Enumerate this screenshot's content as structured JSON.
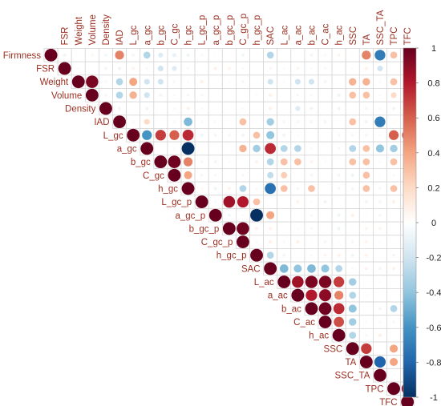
{
  "chart_data": {
    "type": "heatmap",
    "subtype": "correlation-matrix-upper",
    "variables": [
      "Firmness",
      "FSR",
      "Weight",
      "Volume",
      "Density",
      "IAD",
      "L_gc",
      "a_gc",
      "b_gc",
      "C_gc",
      "h_gc",
      "L_gc_p",
      "a_gc_p",
      "b_gc_p",
      "C_gc_p",
      "h_gc_p",
      "SAC",
      "L_ac",
      "a_ac",
      "b_ac",
      "C_ac",
      "h_ac",
      "SSC",
      "TA",
      "SSC_TA",
      "TPC",
      "TFC"
    ],
    "correlations": [
      {
        "row": "Firmness",
        "col": "IAD",
        "r": 0.5
      },
      {
        "row": "Firmness",
        "col": "a_gc",
        "r": -0.3
      },
      {
        "row": "Firmness",
        "col": "b_gc",
        "r": -0.15
      },
      {
        "row": "Firmness",
        "col": "C_gc",
        "r": -0.1
      },
      {
        "row": "Firmness",
        "col": "SAC",
        "r": -0.3
      },
      {
        "row": "Firmness",
        "col": "TA",
        "r": 0.5
      },
      {
        "row": "Firmness",
        "col": "SSC_TA",
        "r": -0.7
      },
      {
        "row": "Firmness",
        "col": "TPC",
        "r": 0.3
      },
      {
        "row": "Firmness",
        "col": "TFC",
        "r": 0.3
      },
      {
        "row": "FSR",
        "col": "b_gc",
        "r": -0.2
      },
      {
        "row": "FSR",
        "col": "C_gc",
        "r": -0.15
      },
      {
        "row": "FSR",
        "col": "SSC_TA",
        "r": -0.2
      },
      {
        "row": "Weight",
        "col": "Volume",
        "r": 0.95
      },
      {
        "row": "Weight",
        "col": "IAD",
        "r": -0.3
      },
      {
        "row": "Weight",
        "col": "L_gc",
        "r": 0.4
      },
      {
        "row": "Weight",
        "col": "a_gc",
        "r": -0.2
      },
      {
        "row": "Weight",
        "col": "b_gc",
        "r": -0.2
      },
      {
        "row": "Weight",
        "col": "SAC",
        "r": -0.2
      },
      {
        "row": "Weight",
        "col": "a_ac",
        "r": -0.2
      },
      {
        "row": "Weight",
        "col": "b_ac",
        "r": -0.2
      },
      {
        "row": "Weight",
        "col": "SSC",
        "r": 0.35
      },
      {
        "row": "Weight",
        "col": "TA",
        "r": 0.35
      },
      {
        "row": "Weight",
        "col": "TPC",
        "r": 0.3
      },
      {
        "row": "Volume",
        "col": "IAD",
        "r": -0.3
      },
      {
        "row": "Volume",
        "col": "L_gc",
        "r": 0.35
      },
      {
        "row": "Volume",
        "col": "a_gc",
        "r": -0.2
      },
      {
        "row": "Volume",
        "col": "SSC",
        "r": 0.3
      },
      {
        "row": "Volume",
        "col": "TA",
        "r": 0.3
      },
      {
        "row": "Volume",
        "col": "TPC",
        "r": 0.2
      },
      {
        "row": "Density",
        "col": "a_ac",
        "r": -0.15
      },
      {
        "row": "Density",
        "col": "TFC",
        "r": -0.15
      },
      {
        "row": "IAD",
        "col": "a_gc",
        "r": 0.2
      },
      {
        "row": "IAD",
        "col": "h_gc",
        "r": -0.45
      },
      {
        "row": "IAD",
        "col": "C_gc_p",
        "r": 0.3
      },
      {
        "row": "IAD",
        "col": "SAC",
        "r": -0.35
      },
      {
        "row": "IAD",
        "col": "SSC",
        "r": 0.3
      },
      {
        "row": "IAD",
        "col": "SSC_TA",
        "r": -0.7
      },
      {
        "row": "IAD",
        "col": "TFC",
        "r": 0.2
      },
      {
        "row": "L_gc",
        "col": "a_gc",
        "r": -0.6
      },
      {
        "row": "L_gc",
        "col": "b_gc",
        "r": 0.7
      },
      {
        "row": "L_gc",
        "col": "C_gc",
        "r": 0.6
      },
      {
        "row": "L_gc",
        "col": "h_gc",
        "r": 0.75
      },
      {
        "row": "L_gc",
        "col": "h_gc_p",
        "r": 0.3
      },
      {
        "row": "L_gc",
        "col": "SAC",
        "r": -0.4
      },
      {
        "row": "L_gc",
        "col": "TPC",
        "r": 0.6
      },
      {
        "row": "L_gc",
        "col": "TFC",
        "r": 0.7
      },
      {
        "row": "a_gc",
        "col": "h_gc",
        "r": -1.0
      },
      {
        "row": "a_gc",
        "col": "C_gc_p",
        "r": 0.35
      },
      {
        "row": "a_gc",
        "col": "h_gc_p",
        "r": -0.35
      },
      {
        "row": "a_gc",
        "col": "SAC",
        "r": 0.75
      },
      {
        "row": "a_gc",
        "col": "L_ac",
        "r": -0.3
      },
      {
        "row": "a_gc",
        "col": "a_ac",
        "r": -0.3
      },
      {
        "row": "a_gc",
        "col": "SSC",
        "r": -0.3
      },
      {
        "row": "a_gc",
        "col": "TA",
        "r": 0.3
      },
      {
        "row": "a_gc",
        "col": "SSC_TA",
        "r": -0.4
      },
      {
        "row": "a_gc",
        "col": "TPC",
        "r": -0.35
      },
      {
        "row": "a_gc",
        "col": "TFC",
        "r": -0.4
      },
      {
        "row": "b_gc",
        "col": "C_gc",
        "r": 0.98
      },
      {
        "row": "b_gc",
        "col": "h_gc",
        "r": 0.5
      },
      {
        "row": "b_gc",
        "col": "SAC",
        "r": -0.3
      },
      {
        "row": "b_gc",
        "col": "L_ac",
        "r": 0.3
      },
      {
        "row": "b_gc",
        "col": "a_ac",
        "r": 0.3
      },
      {
        "row": "b_gc",
        "col": "SSC",
        "r": 0.3
      },
      {
        "row": "b_gc",
        "col": "TA",
        "r": 0.3
      },
      {
        "row": "b_gc",
        "col": "TPC",
        "r": 0.3
      },
      {
        "row": "C_gc",
        "col": "h_gc",
        "r": 0.4
      },
      {
        "row": "C_gc",
        "col": "SAC",
        "r": -0.25
      },
      {
        "row": "C_gc",
        "col": "L_ac",
        "r": 0.25
      },
      {
        "row": "C_gc",
        "col": "TA",
        "r": 0.3
      },
      {
        "row": "h_gc",
        "col": "C_gc_p",
        "r": -0.3
      },
      {
        "row": "h_gc",
        "col": "SAC",
        "r": -0.75
      },
      {
        "row": "h_gc",
        "col": "L_ac",
        "r": 0.3
      },
      {
        "row": "h_gc",
        "col": "b_ac",
        "r": 0.3
      },
      {
        "row": "h_gc",
        "col": "TA",
        "r": 0.3
      },
      {
        "row": "h_gc",
        "col": "TPC",
        "r": 0.3
      },
      {
        "row": "h_gc",
        "col": "TFC",
        "r": 0.3
      },
      {
        "row": "L_gc_p",
        "col": "b_gc_p",
        "r": 0.85
      },
      {
        "row": "L_gc_p",
        "col": "C_gc_p",
        "r": 0.8
      },
      {
        "row": "L_gc_p",
        "col": "h_gc_p",
        "r": 0.3
      },
      {
        "row": "a_gc_p",
        "col": "h_gc_p",
        "r": -1.0
      },
      {
        "row": "a_gc_p",
        "col": "SAC",
        "r": 0.4
      },
      {
        "row": "b_gc_p",
        "col": "C_gc_p",
        "r": 0.98
      },
      {
        "row": "h_gc_p",
        "col": "SAC",
        "r": -0.3
      },
      {
        "row": "SAC",
        "col": "L_ac",
        "r": -0.45
      },
      {
        "row": "SAC",
        "col": "a_ac",
        "r": -0.4
      },
      {
        "row": "SAC",
        "col": "b_ac",
        "r": -0.45
      },
      {
        "row": "SAC",
        "col": "C_ac",
        "r": -0.4
      },
      {
        "row": "SAC",
        "col": "h_ac",
        "r": -0.3
      },
      {
        "row": "L_ac",
        "col": "a_ac",
        "r": 0.85
      },
      {
        "row": "L_ac",
        "col": "b_ac",
        "r": 0.95
      },
      {
        "row": "L_ac",
        "col": "C_ac",
        "r": 0.95
      },
      {
        "row": "L_ac",
        "col": "h_ac",
        "r": 0.7
      },
      {
        "row": "L_ac",
        "col": "SSC",
        "r": -0.35
      },
      {
        "row": "L_ac",
        "col": "TFC",
        "r": -0.3
      },
      {
        "row": "a_ac",
        "col": "b_ac",
        "r": 0.8
      },
      {
        "row": "a_ac",
        "col": "C_ac",
        "r": 0.9
      },
      {
        "row": "a_ac",
        "col": "h_ac",
        "r": 0.5
      },
      {
        "row": "a_ac",
        "col": "SSC",
        "r": -0.3
      },
      {
        "row": "a_ac",
        "col": "TFC",
        "r": -0.3
      },
      {
        "row": "b_ac",
        "col": "C_ac",
        "r": 0.98
      },
      {
        "row": "b_ac",
        "col": "h_ac",
        "r": 0.75
      },
      {
        "row": "b_ac",
        "col": "SSC",
        "r": -0.4
      },
      {
        "row": "b_ac",
        "col": "TPC",
        "r": -0.3
      },
      {
        "row": "b_ac",
        "col": "TFC",
        "r": -0.35
      },
      {
        "row": "C_ac",
        "col": "h_ac",
        "r": 0.65
      },
      {
        "row": "C_ac",
        "col": "SSC",
        "r": -0.35
      },
      {
        "row": "C_ac",
        "col": "TFC",
        "r": -0.3
      },
      {
        "row": "h_ac",
        "col": "SSC",
        "r": -0.3
      },
      {
        "row": "h_ac",
        "col": "TFC",
        "r": -0.3
      },
      {
        "row": "SSC",
        "col": "TA",
        "r": 0.7
      },
      {
        "row": "SSC",
        "col": "TPC",
        "r": 0.4
      },
      {
        "row": "SSC",
        "col": "TFC",
        "r": 0.5
      },
      {
        "row": "TA",
        "col": "SSC_TA",
        "r": -0.8
      },
      {
        "row": "TA",
        "col": "TPC",
        "r": 0.4
      },
      {
        "row": "TA",
        "col": "TFC",
        "r": 0.4
      },
      {
        "row": "SSC_TA",
        "col": "TFC",
        "r": -0.35
      },
      {
        "row": "TPC",
        "col": "TFC",
        "r": 0.85
      }
    ],
    "colorbar": {
      "range": [
        -1,
        1
      ],
      "ticks": [
        1,
        0.8,
        0.6,
        0.4,
        0.2,
        0,
        -0.2,
        -0.4,
        -0.6,
        -0.8,
        -1
      ],
      "tick_labels": [
        "1",
        "0.8",
        "0.6",
        "0.4",
        "0.2",
        "0",
        "-0.2",
        "-0.4",
        "-0.6",
        "-0.8",
        "-1"
      ],
      "colors": [
        "#67001f",
        "#b2182b",
        "#d6604d",
        "#f4a582",
        "#fddbc7",
        "#ffffff",
        "#d1e5f0",
        "#92c5de",
        "#4393c3",
        "#2166ac",
        "#053061"
      ]
    },
    "label_color": "#9b2f22",
    "grid_color": "#d6d6d6"
  }
}
